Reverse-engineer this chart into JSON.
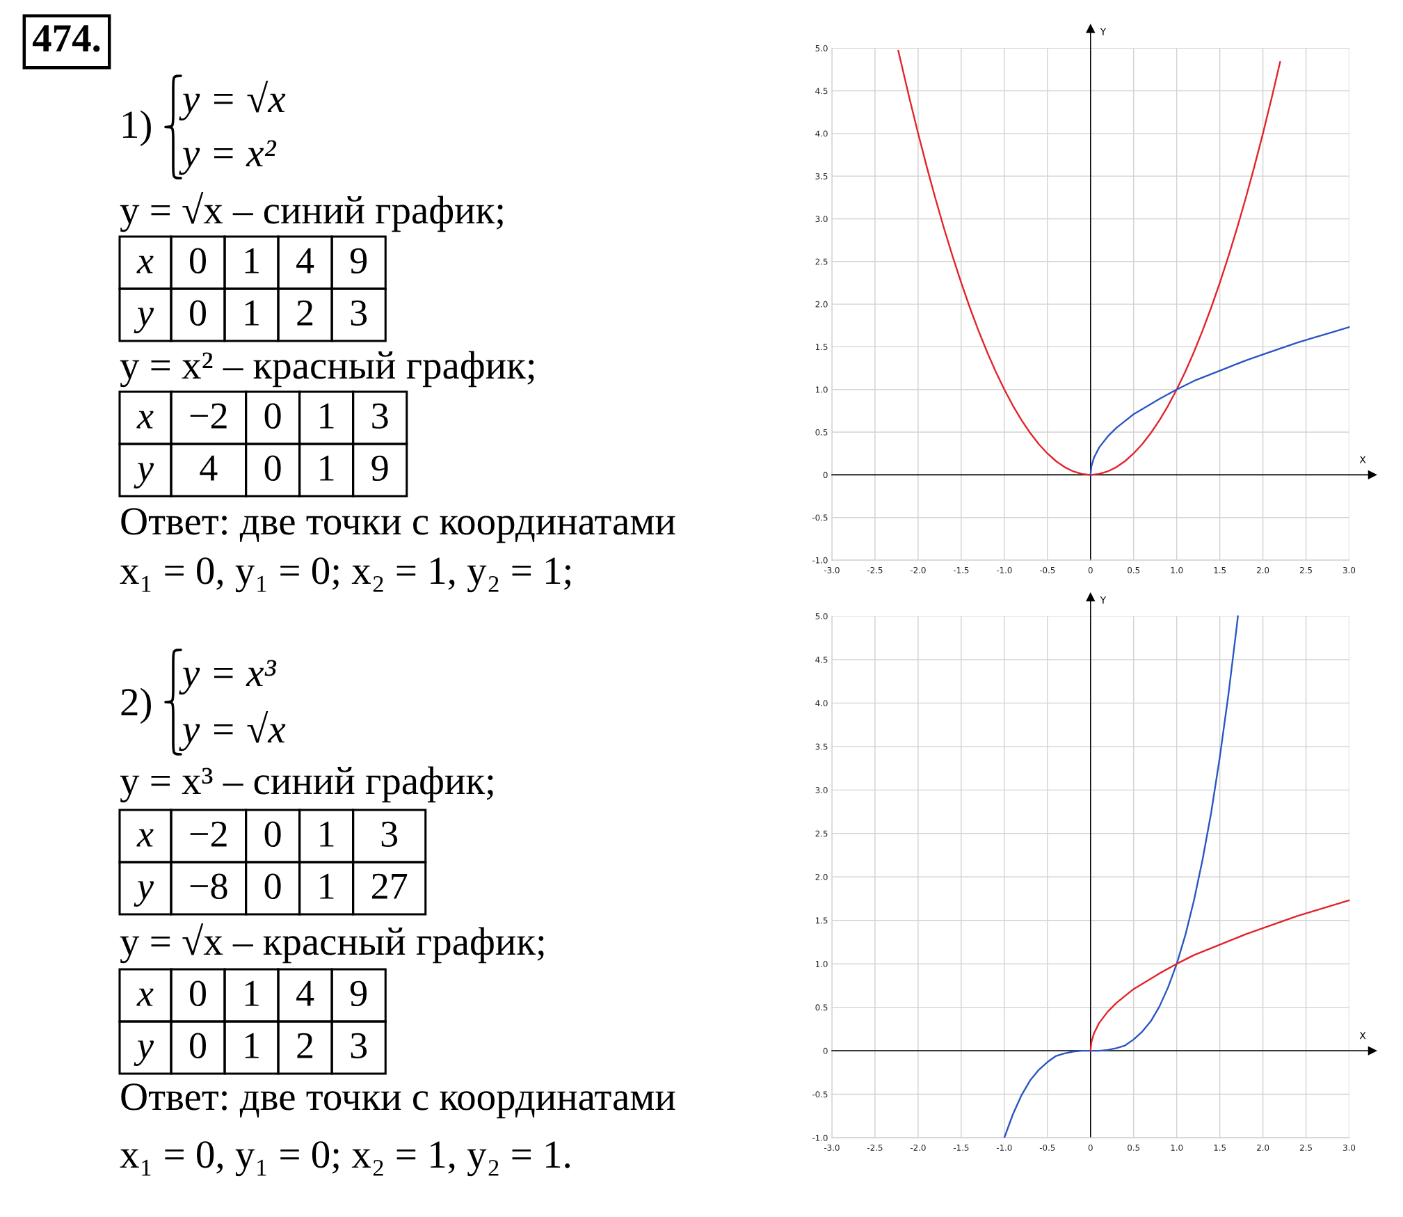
{
  "chart_data": [
    {
      "type": "line",
      "annotations": [
        "474.",
        "1)",
        "y = √x",
        "y = x²",
        "y = √x – синий график;",
        "x",
        "0",
        "1",
        "4",
        "9",
        "y",
        "0",
        "1",
        "2",
        "3",
        "y = x² – красный график;",
        "x",
        "−2",
        "0",
        "1",
        "3",
        "y",
        "4",
        "0",
        "1",
        "9",
        "Ответ: две точки с координатами",
        "x₁ = 0, y₁ = 0; x₂ = 1, y₂ = 1;"
      ],
      "xlabel": "X",
      "ylabel": "Y",
      "xlim": [
        -3,
        3.27
      ],
      "ylim": [
        -1,
        5.23
      ],
      "xticks": [
        {
          "value": -3,
          "label": "-3.0"
        },
        -2.5,
        {
          "value": -2,
          "label": "-2.0"
        },
        -1.5,
        {
          "value": -1,
          "label": "-1.0"
        },
        -0.5,
        0,
        0.5,
        {
          "value": 1,
          "label": "1.0"
        },
        1.5,
        {
          "value": 2,
          "label": "2.0"
        },
        2.5,
        {
          "value": 3,
          "label": "3.0"
        }
      ],
      "yticks": [
        {
          "value": -1,
          "label": "-1.0"
        },
        -0.5,
        0,
        0.5,
        {
          "value": 1,
          "label": "1.0"
        },
        1.5,
        {
          "value": 2,
          "label": "2.0"
        },
        2.5,
        {
          "value": 3,
          "label": "3.0"
        },
        3.5,
        {
          "value": 4,
          "label": "4.0"
        },
        4.5,
        {
          "value": 5,
          "label": "5.0"
        }
      ],
      "grid": true,
      "series": [
        {
          "color": "#e2232a",
          "x": [
            -2.23,
            -2.2,
            -2.1,
            -2.0,
            -1.9,
            -1.8,
            -1.7,
            -1.6,
            -1.5,
            -1.4,
            -1.3,
            -1.2,
            -1.1,
            -1.0,
            -0.9,
            -0.8,
            -0.7,
            -0.6,
            -0.5,
            -0.4,
            -0.3,
            -0.2,
            -0.1,
            0,
            0.1,
            0.2,
            0.3,
            0.4,
            0.5,
            0.6,
            0.7,
            0.8,
            0.9,
            1.0,
            1.1,
            1.2,
            1.3,
            1.4,
            1.5,
            1.6,
            1.7,
            1.8,
            1.9,
            2.0,
            2.1,
            2.2
          ],
          "values": [
            4.97,
            4.84,
            4.41,
            4,
            3.61,
            3.24,
            2.89,
            2.56,
            2.25,
            1.96,
            1.69,
            1.44,
            1.21,
            1,
            0.81,
            0.64,
            0.49,
            0.36,
            0.25,
            0.16,
            0.09,
            0.04,
            0.01,
            0,
            0.01,
            0.04,
            0.09,
            0.16,
            0.25,
            0.36,
            0.49,
            0.64,
            0.81,
            1,
            1.21,
            1.44,
            1.69,
            1.96,
            2.25,
            2.56,
            2.89,
            3.24,
            3.61,
            4,
            4.41,
            4.84
          ]
        },
        {
          "color": "#2a55c4",
          "x": [
            0,
            0.01,
            0.04,
            0.1,
            0.2,
            0.3,
            0.4,
            0.5,
            0.6,
            0.8,
            1.0,
            1.2,
            1.4,
            1.6,
            1.8,
            2.0,
            2.2,
            2.4,
            2.6,
            2.8,
            3.0
          ],
          "values": [
            0,
            0.1,
            0.2,
            0.32,
            0.45,
            0.55,
            0.63,
            0.71,
            0.77,
            0.89,
            1,
            1.1,
            1.18,
            1.26,
            1.34,
            1.41,
            1.48,
            1.55,
            1.61,
            1.67,
            1.73
          ]
        }
      ]
    },
    {
      "type": "line",
      "annotations": [
        "2)",
        "y = x³",
        "y = √x",
        "y = x³ – синий график;",
        "x",
        "−2",
        "0",
        "1",
        "3",
        "y",
        "−8",
        "0",
        "1",
        "27",
        "y = √x – красный график;",
        "x",
        "0",
        "1",
        "4",
        "9",
        "y",
        "0",
        "1",
        "2",
        "3",
        "Ответ: две точки с координатами",
        "x₁ = 0, y₁ = 0; x₂ = 1, y₂ = 1."
      ],
      "xlabel": "X",
      "ylabel": "Y",
      "xlim": [
        -3,
        3.27
      ],
      "ylim": [
        -1,
        5.22
      ],
      "xticks": [
        {
          "value": -3,
          "label": "-3.0"
        },
        -2.5,
        {
          "value": -2,
          "label": "-2.0"
        },
        -1.5,
        {
          "value": -1,
          "label": "-1.0"
        },
        -0.5,
        0,
        0.5,
        {
          "value": 1,
          "label": "1.0"
        },
        1.5,
        {
          "value": 2,
          "label": "2.0"
        },
        2.5,
        {
          "value": 3,
          "label": "3.0"
        }
      ],
      "yticks": [
        {
          "value": -1,
          "label": "-1.0"
        },
        -0.5,
        0,
        0.5,
        {
          "value": 1,
          "label": "1.0"
        },
        1.5,
        {
          "value": 2,
          "label": "2.0"
        },
        2.5,
        {
          "value": 3,
          "label": "3.0"
        },
        3.5,
        {
          "value": 4,
          "label": "4.0"
        },
        4.5,
        {
          "value": 5,
          "label": "5.0"
        }
      ],
      "grid": true,
      "series": [
        {
          "color": "#2a55c4",
          "x": [
            -1.0,
            -0.9,
            -0.8,
            -0.7,
            -0.6,
            -0.5,
            -0.4,
            -0.3,
            -0.2,
            -0.1,
            0,
            0.1,
            0.2,
            0.3,
            0.4,
            0.5,
            0.6,
            0.7,
            0.8,
            0.9,
            1.0,
            1.1,
            1.2,
            1.3,
            1.4,
            1.5,
            1.6,
            1.7,
            1.71
          ],
          "values": [
            -1,
            -0.73,
            -0.51,
            -0.34,
            -0.22,
            -0.13,
            -0.06,
            -0.03,
            -0.01,
            0,
            0,
            0,
            0.01,
            0.03,
            0.06,
            0.13,
            0.22,
            0.34,
            0.51,
            0.73,
            1,
            1.33,
            1.73,
            2.2,
            2.74,
            3.38,
            4.1,
            4.91,
            5
          ]
        },
        {
          "color": "#e2232a",
          "x": [
            0,
            0.01,
            0.04,
            0.1,
            0.2,
            0.3,
            0.4,
            0.5,
            0.6,
            0.8,
            1.0,
            1.2,
            1.4,
            1.6,
            1.8,
            2.0,
            2.2,
            2.4,
            2.6,
            2.8,
            3.0
          ],
          "values": [
            0,
            0.1,
            0.2,
            0.32,
            0.45,
            0.55,
            0.63,
            0.71,
            0.77,
            0.89,
            1,
            1.1,
            1.18,
            1.26,
            1.34,
            1.41,
            1.48,
            1.55,
            1.61,
            1.67,
            1.73
          ]
        }
      ]
    }
  ]
}
